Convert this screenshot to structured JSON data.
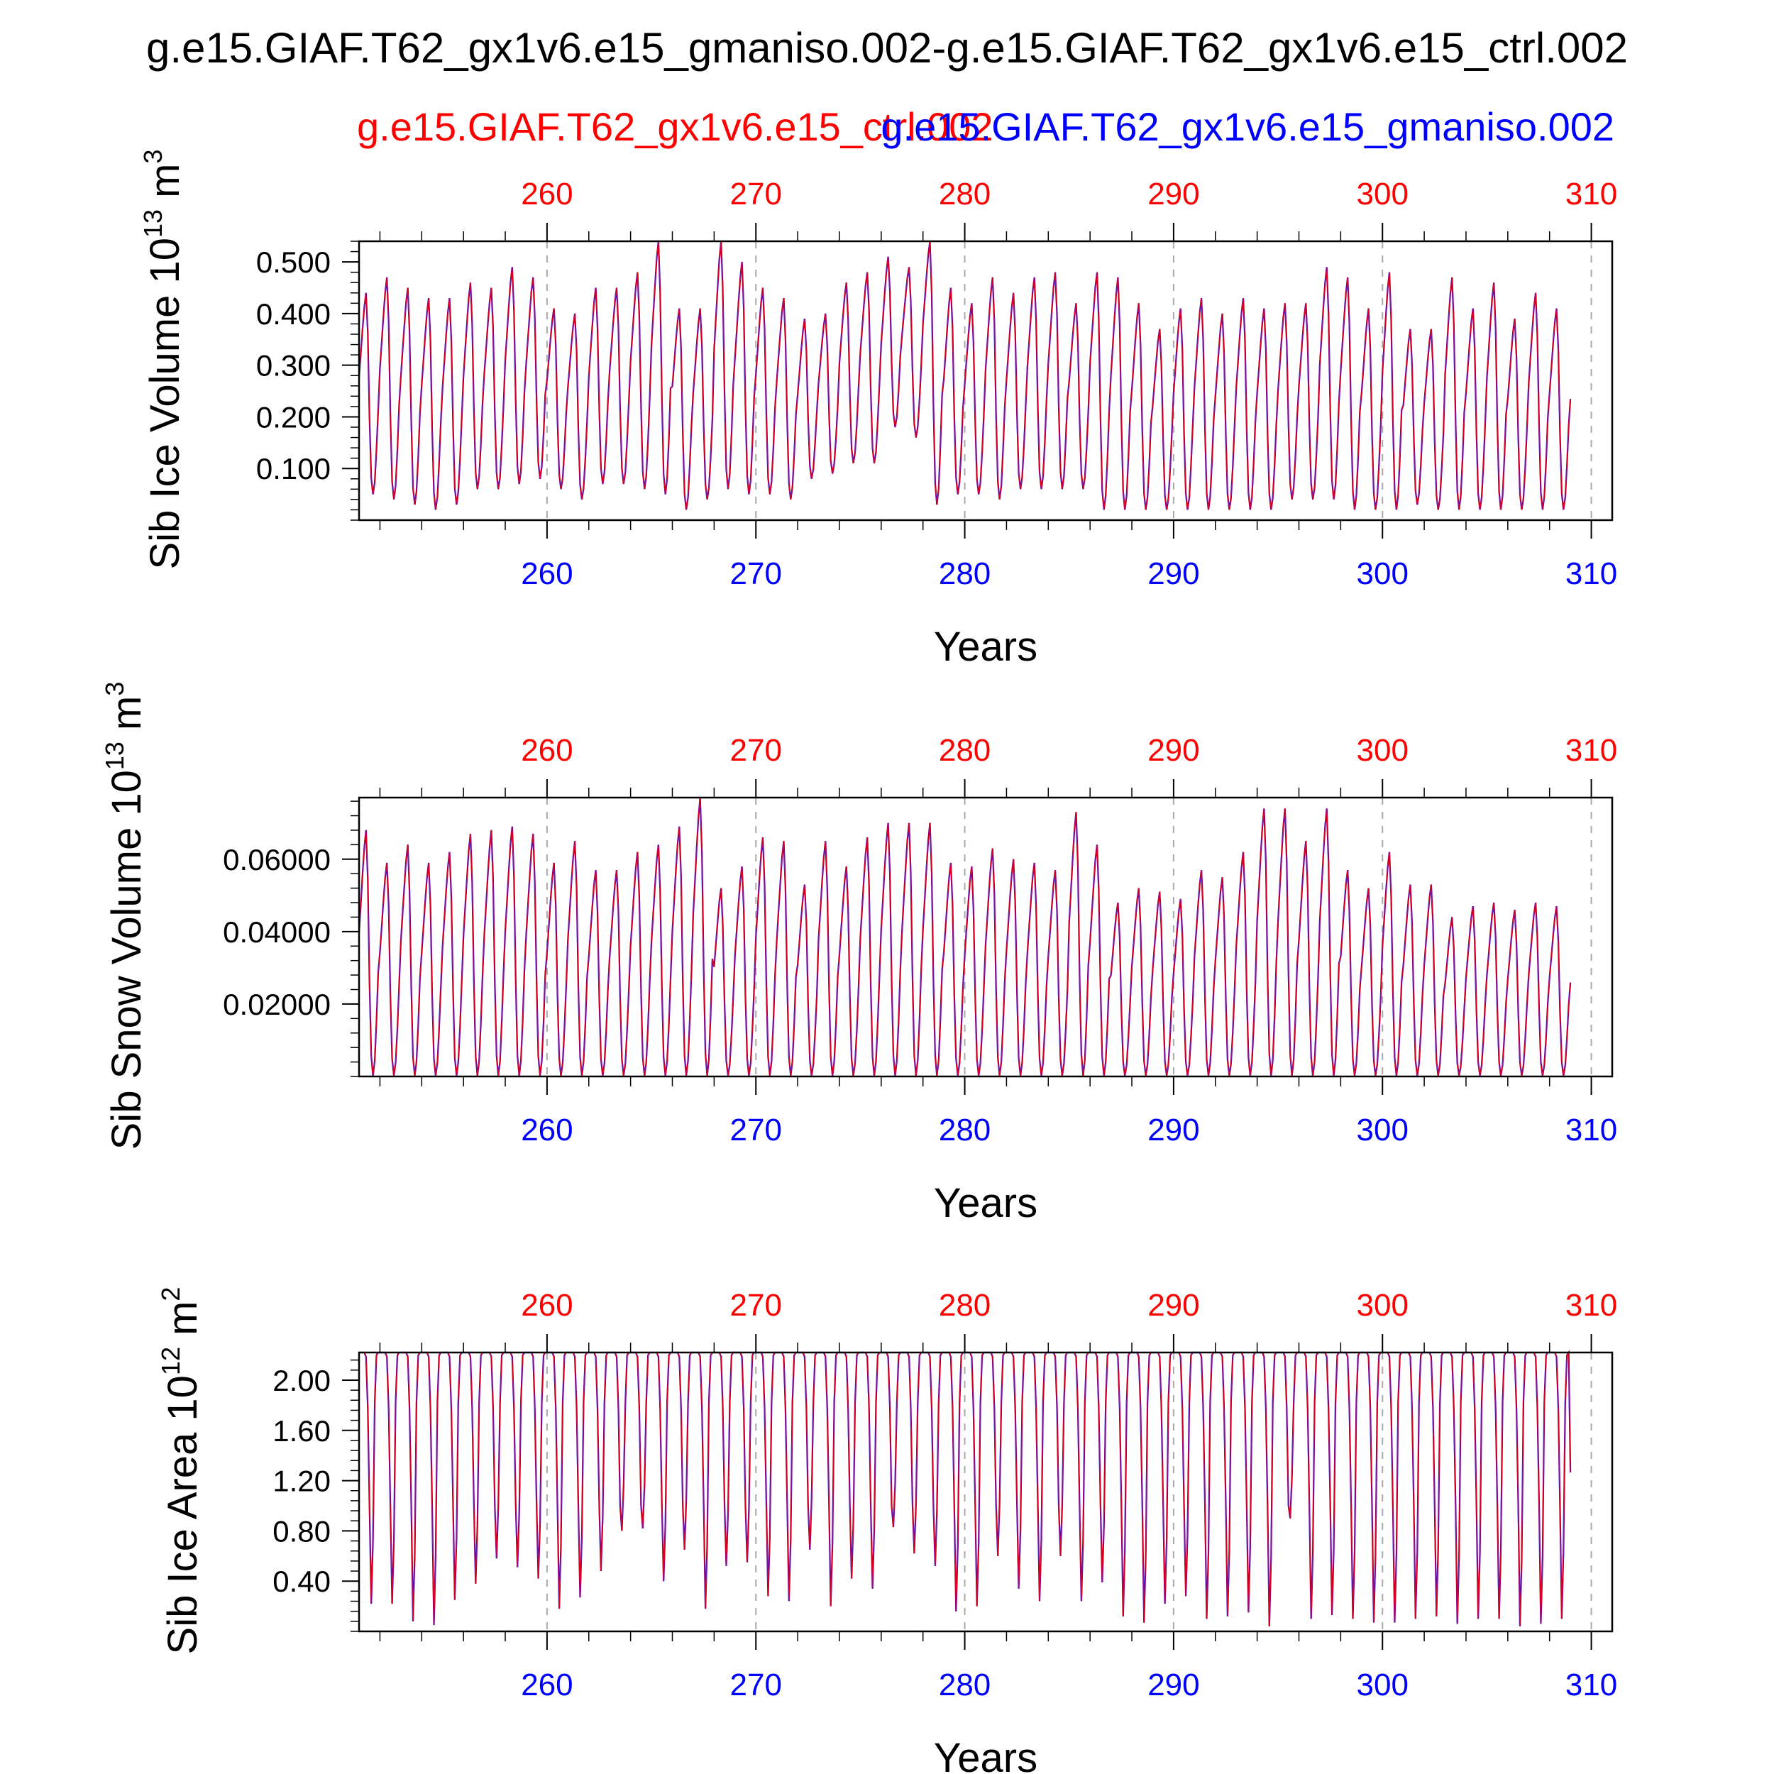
{
  "title": "g.e15.GIAF.T62_gx1v6.e15_gmaniso.002-g.e15.GIAF.T62_gx1v6.e15_ctrl.002",
  "legend": {
    "ctrl_label": "g.e15.GIAF.T62_gx1v6.e15_ctrl.002",
    "aniso_label": "g.e15.GIAF.T62_gx1v6.e15_gmaniso.002",
    "ctrl_color": "#ff0000",
    "aniso_color": "#0000ff"
  },
  "chart_data": [
    {
      "type": "line",
      "ylabel": "Sib Ice Volume 10",
      "ylabel_exp": "13",
      "ylabel_unit": "m",
      "ylabel_unit_exp": "3",
      "xlabel": "Years",
      "xlim": [
        251,
        311
      ],
      "ylim": [
        0.0,
        0.54
      ],
      "yticks": [
        0.1,
        0.2,
        0.3,
        0.4,
        0.5
      ],
      "yticklabels": [
        "0.100",
        "0.200",
        "0.300",
        "0.400",
        "0.500"
      ],
      "ymin_tick": 0.02,
      "xticks": [
        260,
        270,
        280,
        290,
        300,
        310
      ],
      "grid": "dashed vertical at decades",
      "monthly": true,
      "peaks": [
        0.44,
        0.47,
        0.45,
        0.43,
        0.43,
        0.46,
        0.45,
        0.49,
        0.47,
        0.41,
        0.4,
        0.45,
        0.45,
        0.48,
        0.54,
        0.41,
        0.41,
        0.54,
        0.5,
        0.45,
        0.43,
        0.39,
        0.4,
        0.46,
        0.48,
        0.51,
        0.49,
        0.54,
        0.45,
        0.42,
        0.47,
        0.44,
        0.47,
        0.48,
        0.42,
        0.48,
        0.47,
        0.42,
        0.37,
        0.41,
        0.43,
        0.4,
        0.43,
        0.41,
        0.42,
        0.42,
        0.49,
        0.47,
        0.41,
        0.48,
        0.37,
        0.37,
        0.47,
        0.41,
        0.46,
        0.39,
        0.44,
        0.41
      ],
      "troughs": [
        0.05,
        0.04,
        0.03,
        0.02,
        0.03,
        0.06,
        0.06,
        0.07,
        0.08,
        0.06,
        0.04,
        0.07,
        0.07,
        0.06,
        0.05,
        0.02,
        0.04,
        0.06,
        0.05,
        0.05,
        0.04,
        0.08,
        0.09,
        0.11,
        0.11,
        0.18,
        0.16,
        0.03,
        0.05,
        0.05,
        0.04,
        0.06,
        0.06,
        0.06,
        0.06,
        0.02,
        0.02,
        0.02,
        0.02,
        0.02,
        0.02,
        0.02,
        0.02,
        0.02,
        0.04,
        0.04,
        0.04,
        0.02,
        0.02,
        0.02,
        0.03,
        0.02,
        0.02,
        0.02,
        0.02,
        0.02,
        0.02,
        0.02
      ]
    },
    {
      "type": "line",
      "ylabel": "Sib Snow Volume 10",
      "ylabel_exp": "13",
      "ylabel_unit": "m",
      "ylabel_unit_exp": "3",
      "xlabel": "Years",
      "xlim": [
        251,
        311
      ],
      "ylim": [
        0.0,
        0.077
      ],
      "yticks": [
        0.02,
        0.04,
        0.06
      ],
      "yticklabels": [
        "0.02000",
        "0.04000",
        "0.06000"
      ],
      "ymin_tick": 0.004,
      "xticks": [
        260,
        270,
        280,
        290,
        300,
        310
      ],
      "grid": "dashed vertical at decades",
      "monthly": true,
      "peaks": [
        0.068,
        0.059,
        0.064,
        0.059,
        0.062,
        0.067,
        0.068,
        0.069,
        0.067,
        0.059,
        0.065,
        0.057,
        0.057,
        0.062,
        0.064,
        0.069,
        0.077,
        0.052,
        0.058,
        0.066,
        0.065,
        0.053,
        0.065,
        0.058,
        0.066,
        0.07,
        0.07,
        0.07,
        0.059,
        0.058,
        0.063,
        0.06,
        0.059,
        0.057,
        0.073,
        0.064,
        0.048,
        0.052,
        0.051,
        0.049,
        0.057,
        0.055,
        0.062,
        0.074,
        0.074,
        0.065,
        0.074,
        0.057,
        0.052,
        0.062,
        0.053,
        0.053,
        0.044,
        0.047,
        0.048,
        0.046,
        0.048,
        0.047
      ],
      "troughs": [
        0.0002,
        0.0002,
        0.0002,
        0.0002,
        0.0002,
        0.0002,
        0.0002,
        0.0002,
        0.0002,
        0.0002,
        0.0002,
        0.0002,
        0.0002,
        0.0002,
        0.0002,
        0.0002,
        0.0002,
        0.0002,
        0.0002,
        0.0002,
        0.0002,
        0.0002,
        0.0002,
        0.0002,
        0.0002,
        0.0002,
        0.0002,
        0.0002,
        0.0002,
        0.0002,
        0.0002,
        0.0002,
        0.0002,
        0.0002,
        0.0002,
        0.0002,
        0.0002,
        0.0002,
        0.0002,
        0.0002,
        0.0002,
        0.0002,
        0.0002,
        0.0002,
        0.0002,
        0.0002,
        0.0002,
        0.0002,
        0.0002,
        0.0002,
        0.0002,
        0.0002,
        0.0002,
        0.0002,
        0.0002,
        0.0002,
        0.0002,
        0.0002
      ]
    },
    {
      "type": "line",
      "ylabel": "Sib Ice Area 10",
      "ylabel_exp": "12",
      "ylabel_unit": "m",
      "ylabel_unit_exp": "2",
      "xlabel": "Years",
      "xlim": [
        251,
        311
      ],
      "ylim": [
        0.0,
        2.22
      ],
      "yticks": [
        0.4,
        0.8,
        1.2,
        1.6,
        2.0
      ],
      "yticklabels": [
        "0.40",
        "0.80",
        "1.20",
        "1.60",
        "2.00"
      ],
      "ymin_tick": 0.08,
      "xticks": [
        260,
        270,
        280,
        290,
        300,
        310
      ],
      "grid": "dashed vertical at decades",
      "monthly": true,
      "peaks": [
        2.22,
        2.22,
        2.22,
        2.22,
        2.22,
        2.22,
        2.22,
        2.22,
        2.22,
        2.22,
        2.22,
        2.22,
        2.22,
        2.22,
        2.22,
        2.22,
        2.22,
        2.22,
        2.22,
        2.22,
        2.22,
        2.22,
        2.22,
        2.22,
        2.22,
        2.22,
        2.22,
        2.22,
        2.22,
        2.22,
        2.22,
        2.22,
        2.22,
        2.22,
        2.22,
        2.22,
        2.22,
        2.22,
        2.22,
        2.22,
        2.22,
        2.22,
        2.22,
        2.22,
        2.22,
        2.22,
        2.22,
        2.22,
        2.22,
        2.22,
        2.22,
        2.22,
        2.22,
        2.22,
        2.22,
        2.22,
        2.22,
        2.22
      ],
      "troughs": [
        0.22,
        0.22,
        0.08,
        0.05,
        0.25,
        0.38,
        0.58,
        0.51,
        0.42,
        0.18,
        0.27,
        0.48,
        0.8,
        0.82,
        0.4,
        0.65,
        0.18,
        0.52,
        0.55,
        0.28,
        0.24,
        0.65,
        0.2,
        0.42,
        0.34,
        0.83,
        0.62,
        0.52,
        0.16,
        0.2,
        0.6,
        0.34,
        0.24,
        0.6,
        0.24,
        0.39,
        0.12,
        0.07,
        0.22,
        0.28,
        0.1,
        0.12,
        0.15,
        0.04,
        0.9,
        0.1,
        0.13,
        0.1,
        0.07,
        0.07,
        0.1,
        0.12,
        0.06,
        0.1,
        0.1,
        0.04,
        0.06,
        0.1
      ]
    }
  ]
}
